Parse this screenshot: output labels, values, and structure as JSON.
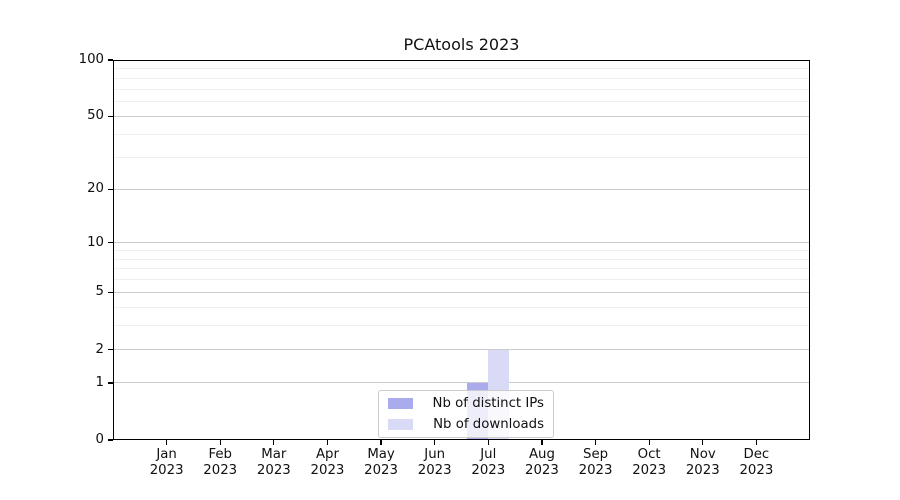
{
  "chart_data": {
    "type": "bar",
    "title": "PCAtools 2023",
    "categories": [
      "Jan",
      "Feb",
      "Mar",
      "Apr",
      "May",
      "Jun",
      "Jul",
      "Aug",
      "Sep",
      "Oct",
      "Nov",
      "Dec"
    ],
    "x_year_label": "2023",
    "series": [
      {
        "name": "Nb of distinct IPs",
        "color": "#a9abec",
        "values": [
          0,
          0,
          0,
          0,
          0,
          0,
          1,
          0,
          0,
          0,
          0,
          0
        ]
      },
      {
        "name": "Nb of downloads",
        "color": "#d9daf5",
        "values": [
          0,
          0,
          0,
          0,
          0,
          0,
          2,
          0,
          0,
          0,
          0,
          0
        ]
      }
    ],
    "xlabel": "",
    "ylabel": "",
    "y_scale": "log1p",
    "ylim": [
      0,
      100
    ],
    "y_tick_values": [
      0,
      1,
      2,
      5,
      10,
      20,
      50,
      100
    ],
    "y_minor_gridlines": [
      3,
      4,
      6,
      7,
      8,
      9,
      30,
      40,
      60,
      70,
      80,
      90
    ],
    "grid": true,
    "legend_position": "lower center",
    "colors": {
      "axis": "#000000",
      "major_grid": "#cdcdcd",
      "minor_grid": "#efefef",
      "background": "#ffffff"
    }
  }
}
